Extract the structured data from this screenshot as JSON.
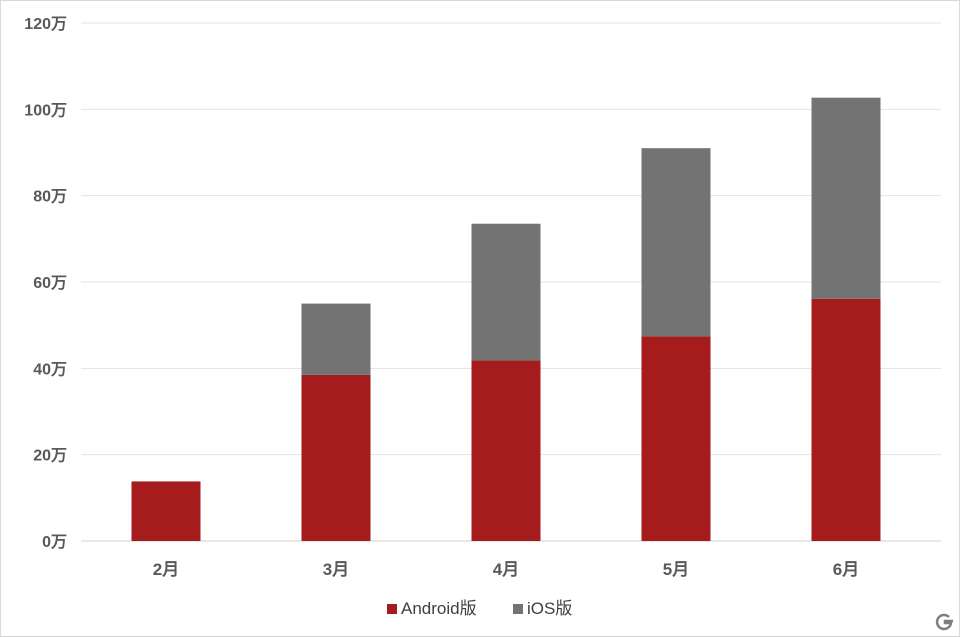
{
  "chart_data": {
    "type": "bar",
    "stacked": true,
    "categories": [
      "2月",
      "3月",
      "4月",
      "5月",
      "6月"
    ],
    "series": [
      {
        "name": "Android版",
        "color": "#a61c1c",
        "values": [
          13.8,
          38.5,
          41.8,
          47.4,
          56.1
        ]
      },
      {
        "name": "iOS版",
        "color": "#737373",
        "values": [
          0,
          16.5,
          31.7,
          43.6,
          46.6
        ]
      }
    ],
    "yticks": [
      "0万",
      "20万",
      "40万",
      "60万",
      "80万",
      "100万",
      "120万"
    ],
    "ylim": [
      0,
      120
    ],
    "ystep": 20,
    "grid": true,
    "legend_position": "bottom"
  },
  "watermark": {
    "icon": "g-logo-icon"
  }
}
